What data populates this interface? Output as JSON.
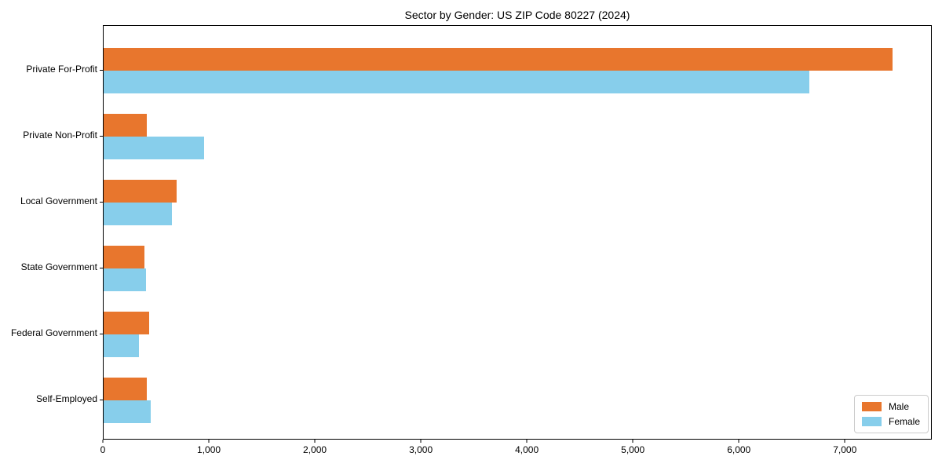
{
  "title": "Sector by Gender: US ZIP Code 80227 (2024)",
  "chart_data": {
    "type": "bar",
    "orientation": "horizontal",
    "title": "Sector by Gender: US ZIP Code 80227 (2024)",
    "categories": [
      "Private For-Profit",
      "Private Non-Profit",
      "Local Government",
      "State Government",
      "Federal Government",
      "Self-Employed"
    ],
    "series": [
      {
        "name": "Male",
        "color": "#e8762d",
        "values": [
          7440,
          410,
          690,
          385,
          430,
          410
        ]
      },
      {
        "name": "Female",
        "color": "#87ceeb",
        "values": [
          6660,
          945,
          645,
          400,
          330,
          445
        ]
      }
    ],
    "xlabel": "",
    "ylabel": "",
    "xlim": [
      0,
      7820
    ],
    "x_ticks": [
      0,
      1000,
      2000,
      3000,
      4000,
      5000,
      6000,
      7000
    ],
    "x_tick_labels": [
      "0",
      "1,000",
      "2,000",
      "3,000",
      "4,000",
      "5,000",
      "6,000",
      "7,000"
    ],
    "legend": {
      "position": "lower-right",
      "entries": [
        "Male",
        "Female"
      ]
    },
    "grid": false,
    "axis_color": "#000000",
    "legend_border_color": "#cccccc"
  }
}
